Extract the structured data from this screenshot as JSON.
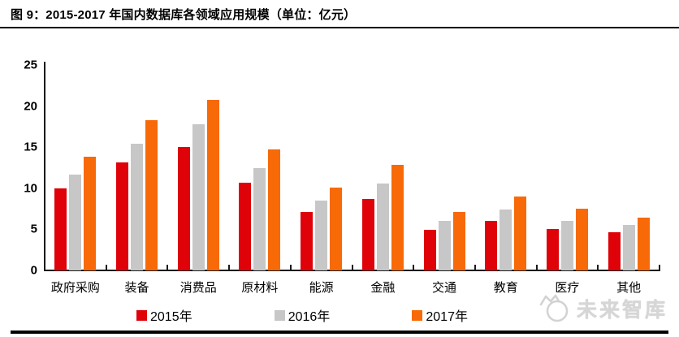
{
  "header": {
    "title": "图 9：2015-2017 年国内数据库各领域应用规模（单位：亿元）"
  },
  "chart_data": {
    "type": "bar",
    "title": "2015-2017 年国内数据库各领域应用规模",
    "unit_label": "亿元",
    "categories": [
      "政府采购",
      "装备",
      "消费品",
      "原材料",
      "能源",
      "金融",
      "交通",
      "教育",
      "医疗",
      "其他"
    ],
    "series": [
      {
        "name": "2015年",
        "color": "#df0209",
        "values": [
          10.0,
          13.1,
          15.0,
          10.7,
          7.1,
          8.7,
          4.9,
          6.0,
          5.0,
          4.6
        ]
      },
      {
        "name": "2016年",
        "color": "#c7c7c7",
        "values": [
          11.7,
          15.4,
          17.8,
          12.5,
          8.5,
          10.6,
          6.0,
          7.4,
          6.0,
          5.5
        ]
      },
      {
        "name": "2017年",
        "color": "#f76a07",
        "values": [
          13.8,
          18.3,
          20.8,
          14.7,
          10.1,
          12.8,
          7.1,
          9.0,
          7.5,
          6.4
        ]
      }
    ],
    "ylim": [
      0,
      25
    ],
    "yticks": [
      0,
      5,
      10,
      15,
      20,
      25
    ],
    "xlabel": "",
    "ylabel": "",
    "grid": false,
    "legend_position": "bottom"
  },
  "watermark": {
    "text": "未来智库"
  }
}
